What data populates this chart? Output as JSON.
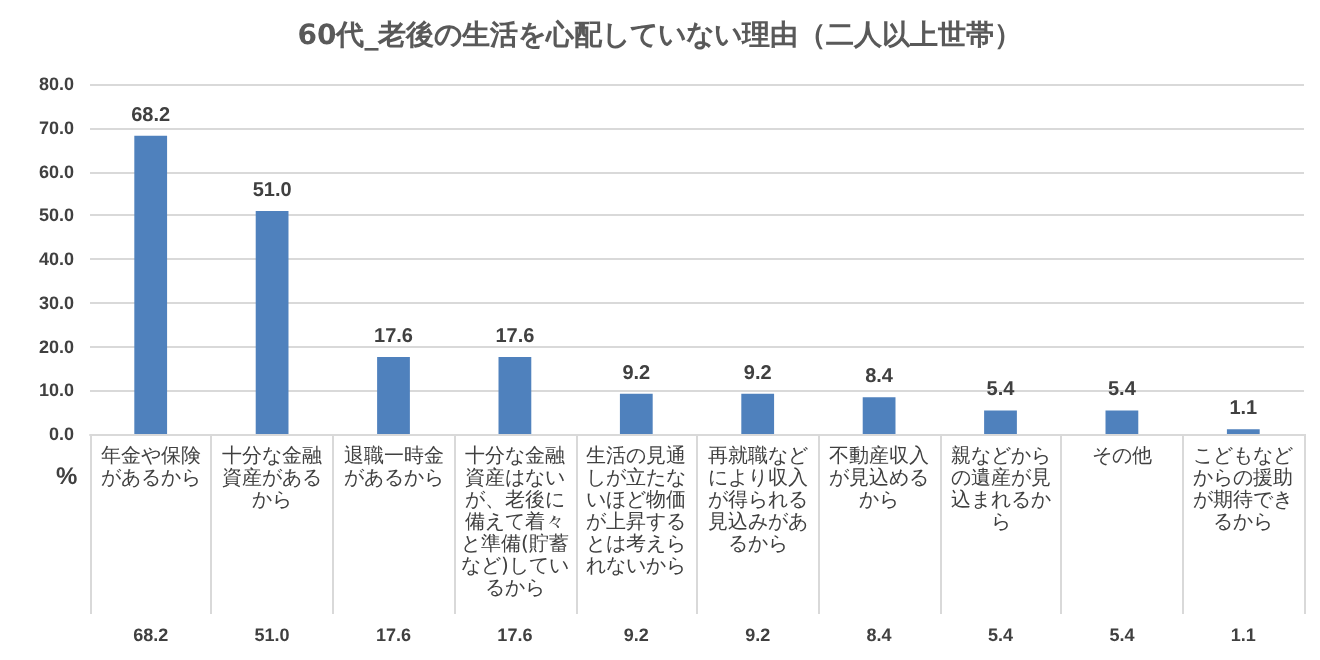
{
  "chart_data": {
    "type": "bar",
    "title": "60代_老後の生活を心配していない理由（二人以上世帯）",
    "ylabel": "%",
    "categories": [
      "年金や保険があるから",
      "十分な金融資産があるから",
      "退職一時金があるから",
      "十分な金融資産はないが、老後に備えて着々と準備(貯蓄など)しているから",
      "生活の見通しが立たないほど物価が上昇するとは考えられないから",
      "再就職などにより収入が得られる見込みがあるから",
      "不動産収入が見込めるから",
      "親などからの遺産が見込まれるから",
      "その他",
      "こどもなどからの援助が期待できるから"
    ],
    "values": [
      68.2,
      51.0,
      17.6,
      17.6,
      9.2,
      9.2,
      8.4,
      5.4,
      5.4,
      1.1
    ],
    "color": "#4f81bd",
    "value_labels": [
      "68.2",
      "51.0",
      "17.6",
      "17.6",
      "9.2",
      "9.2",
      "8.4",
      "5.4",
      "5.4",
      "1.1"
    ],
    "ylim": [
      0,
      80
    ],
    "yticks": [
      {
        "value": 0,
        "label": "0.0"
      },
      {
        "value": 10,
        "label": "10.0"
      },
      {
        "value": 20,
        "label": "20.0"
      },
      {
        "value": 30,
        "label": "30.0"
      },
      {
        "value": 40,
        "label": "40.0"
      },
      {
        "value": 50,
        "label": "50.0"
      },
      {
        "value": 60,
        "label": "60.0"
      },
      {
        "value": 70,
        "label": "70.0"
      },
      {
        "value": 80,
        "label": "80.0"
      }
    ],
    "grid": "y"
  }
}
